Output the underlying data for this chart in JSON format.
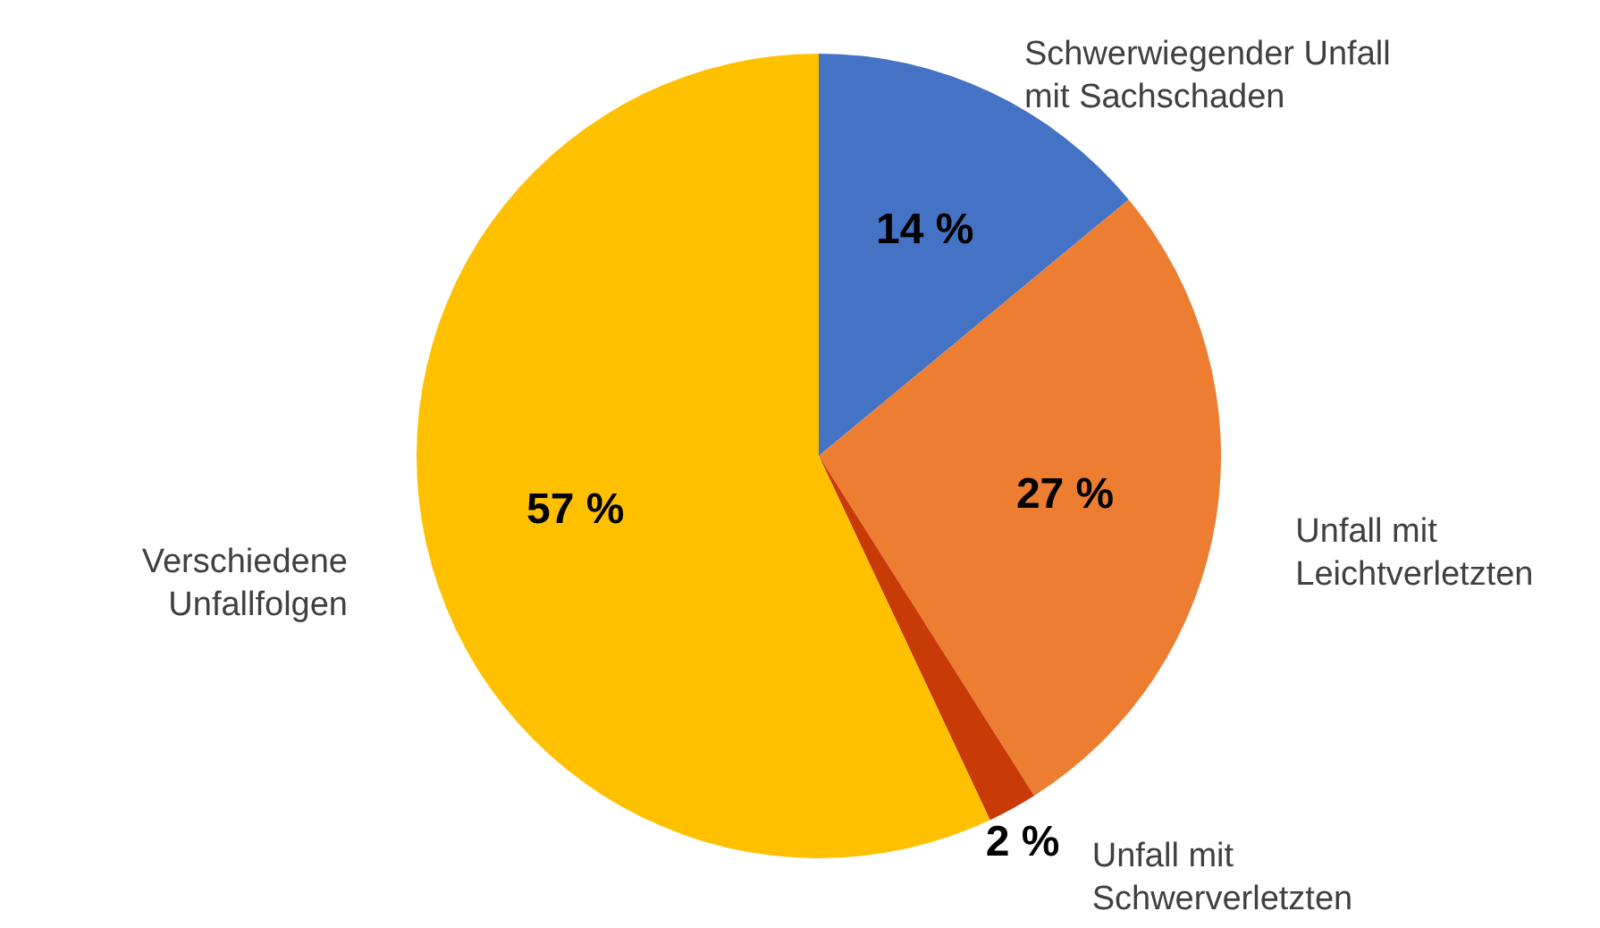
{
  "chart_data": {
    "type": "pie",
    "categories": [
      "Schwerwiegender Unfall mit Sachschaden",
      "Unfall mit Leichtverletzten",
      "Unfall mit Schwerverletzten",
      "Verschiedene Unfallfolgen"
    ],
    "values": [
      14,
      27,
      2,
      57
    ],
    "colors": [
      "#4472c4",
      "#ed7d31",
      "#c83a06",
      "#ffc000"
    ],
    "value_labels": [
      "14 %",
      "27 %",
      "2 %",
      "57 %"
    ]
  }
}
